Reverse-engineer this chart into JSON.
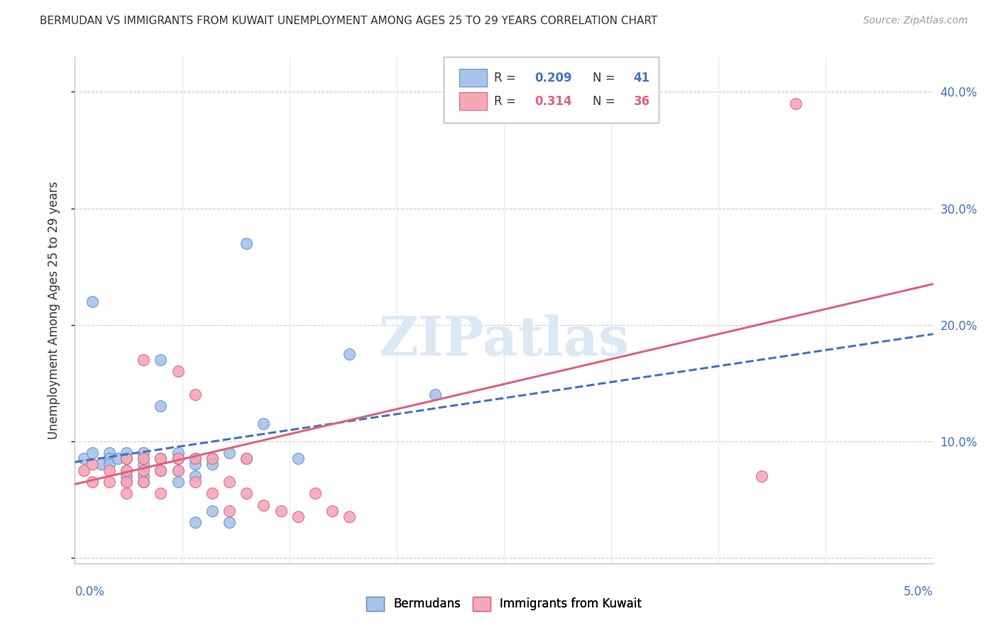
{
  "title": "BERMUDAN VS IMMIGRANTS FROM KUWAIT UNEMPLOYMENT AMONG AGES 25 TO 29 YEARS CORRELATION CHART",
  "source": "Source: ZipAtlas.com",
  "ylabel": "Unemployment Among Ages 25 to 29 years",
  "xmin": 0.0,
  "xmax": 0.05,
  "ymin": -0.005,
  "ymax": 0.43,
  "color_blue": "#a8c4e8",
  "color_pink": "#f4a8b8",
  "color_blue_edge": "#6090d0",
  "color_pink_edge": "#e06080",
  "color_line_blue": "#4472c4",
  "color_line_pink": "#e06080",
  "watermark_color": "#dde8f5",
  "blue_scatter_x": [
    0.0005,
    0.001,
    0.001,
    0.0015,
    0.002,
    0.002,
    0.002,
    0.0025,
    0.003,
    0.003,
    0.003,
    0.003,
    0.003,
    0.004,
    0.004,
    0.004,
    0.004,
    0.004,
    0.005,
    0.005,
    0.005,
    0.005,
    0.006,
    0.006,
    0.006,
    0.006,
    0.007,
    0.007,
    0.007,
    0.007,
    0.008,
    0.008,
    0.008,
    0.009,
    0.009,
    0.01,
    0.01,
    0.011,
    0.013,
    0.016,
    0.021
  ],
  "blue_scatter_y": [
    0.085,
    0.22,
    0.09,
    0.08,
    0.09,
    0.085,
    0.08,
    0.085,
    0.09,
    0.085,
    0.075,
    0.07,
    0.065,
    0.09,
    0.085,
    0.08,
    0.07,
    0.065,
    0.17,
    0.13,
    0.085,
    0.075,
    0.09,
    0.085,
    0.075,
    0.065,
    0.085,
    0.08,
    0.07,
    0.03,
    0.085,
    0.08,
    0.04,
    0.09,
    0.03,
    0.085,
    0.27,
    0.115,
    0.085,
    0.175,
    0.14
  ],
  "pink_scatter_x": [
    0.0005,
    0.001,
    0.001,
    0.002,
    0.002,
    0.003,
    0.003,
    0.003,
    0.003,
    0.004,
    0.004,
    0.004,
    0.004,
    0.005,
    0.005,
    0.005,
    0.006,
    0.006,
    0.006,
    0.007,
    0.007,
    0.007,
    0.008,
    0.008,
    0.009,
    0.009,
    0.01,
    0.01,
    0.011,
    0.012,
    0.013,
    0.014,
    0.015,
    0.016,
    0.042,
    0.04
  ],
  "pink_scatter_y": [
    0.075,
    0.08,
    0.065,
    0.075,
    0.065,
    0.085,
    0.075,
    0.065,
    0.055,
    0.17,
    0.085,
    0.075,
    0.065,
    0.085,
    0.075,
    0.055,
    0.16,
    0.085,
    0.075,
    0.14,
    0.085,
    0.065,
    0.085,
    0.055,
    0.065,
    0.04,
    0.085,
    0.055,
    0.045,
    0.04,
    0.035,
    0.055,
    0.04,
    0.035,
    0.39,
    0.07
  ],
  "blue_line_x": [
    0.0,
    0.05
  ],
  "blue_line_y": [
    0.082,
    0.192
  ],
  "pink_line_x": [
    0.0,
    0.05
  ],
  "pink_line_y": [
    0.063,
    0.235
  ]
}
